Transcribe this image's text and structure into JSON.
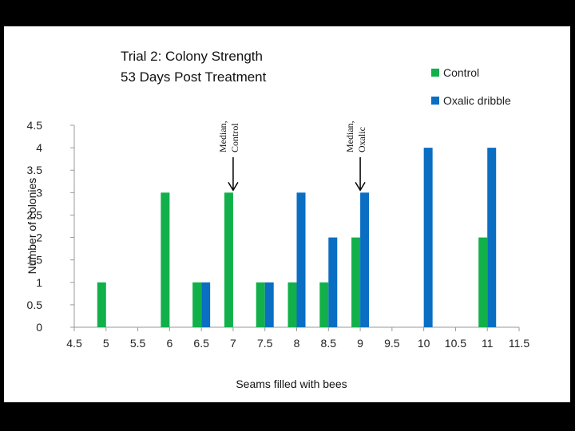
{
  "colors": {
    "control": "#12b04a",
    "oxalic": "#0a6ec3",
    "axis": "#9a9a9a",
    "background": "#ffffff",
    "frame": "#000000"
  },
  "chart_data": {
    "type": "bar",
    "title": [
      "Trial 2: Colony Strength",
      "53 Days Post Treatment"
    ],
    "xlabel": "Seams filled with bees",
    "ylabel": "Number of colonies",
    "xlim": [
      4.5,
      11.5
    ],
    "ylim": [
      0,
      4.5
    ],
    "xticks": [
      "4.5",
      "5",
      "5.5",
      "6",
      "6.5",
      "7",
      "7.5",
      "8",
      "8.5",
      "9",
      "9.5",
      "10",
      "10.5",
      "11",
      "11.5"
    ],
    "yticks": [
      "0",
      "0.5",
      "1",
      "1.5",
      "2",
      "2.5",
      "3",
      "3.5",
      "4",
      "4.5"
    ],
    "grid": false,
    "legend_position": "top-right",
    "series": [
      {
        "name": "Control",
        "color_key": "control",
        "points": [
          {
            "x": 5,
            "y": 1
          },
          {
            "x": 6,
            "y": 3
          },
          {
            "x": 6.5,
            "y": 1
          },
          {
            "x": 7,
            "y": 3
          },
          {
            "x": 7.5,
            "y": 1
          },
          {
            "x": 8,
            "y": 1
          },
          {
            "x": 8.5,
            "y": 1
          },
          {
            "x": 9,
            "y": 2
          },
          {
            "x": 11,
            "y": 2
          }
        ]
      },
      {
        "name": "Oxalic dribble",
        "color_key": "oxalic",
        "points": [
          {
            "x": 6.5,
            "y": 1
          },
          {
            "x": 7.5,
            "y": 1
          },
          {
            "x": 8,
            "y": 3
          },
          {
            "x": 8.5,
            "y": 2
          },
          {
            "x": 9,
            "y": 3
          },
          {
            "x": 10,
            "y": 4
          },
          {
            "x": 11,
            "y": 4
          }
        ]
      }
    ],
    "annotations": [
      {
        "lines": [
          "Median,",
          "Control"
        ],
        "x": 7,
        "y": 3
      },
      {
        "lines": [
          "Median,",
          "Oxalic"
        ],
        "x": 9,
        "y": 3
      }
    ]
  }
}
